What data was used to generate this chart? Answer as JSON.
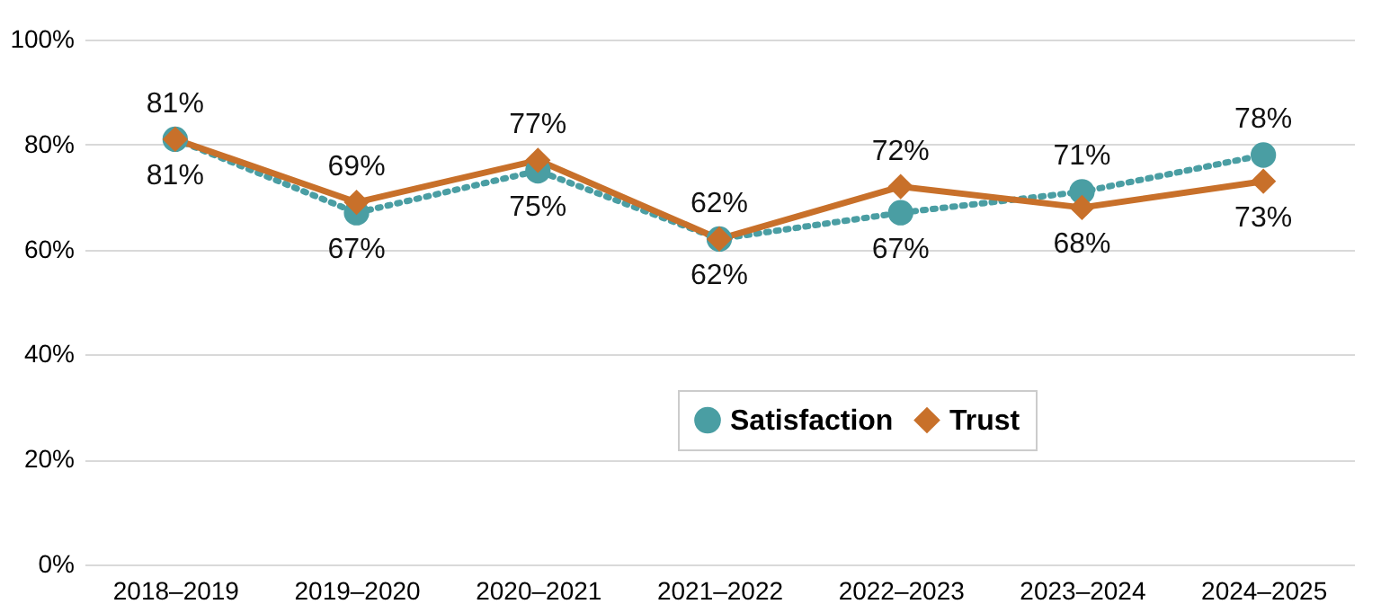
{
  "chart_data": {
    "type": "line",
    "categories": [
      "2018–2019",
      "2019–2020",
      "2020–2021",
      "2021–2022",
      "2022–2023",
      "2023–2024",
      "2024–2025"
    ],
    "series": [
      {
        "name": "Satisfaction",
        "color": "#4a9ea3",
        "marker": "circle",
        "line_style": "dotted",
        "values": [
          81,
          67,
          75,
          62,
          67,
          71,
          78
        ],
        "value_labels": [
          "81%",
          "67%",
          "75%",
          "62%",
          "67%",
          "71%",
          "78%"
        ]
      },
      {
        "name": "Trust",
        "color": "#c8702a",
        "marker": "diamond",
        "line_style": "solid",
        "values": [
          81,
          69,
          77,
          62,
          72,
          68,
          73
        ],
        "value_labels": [
          "81%",
          "69%",
          "77%",
          "62%",
          "72%",
          "68%",
          "73%"
        ]
      }
    ],
    "ylim": [
      0,
      100
    ],
    "yticks": [
      {
        "value": 0,
        "label": "0%"
      },
      {
        "value": 20,
        "label": "20%"
      },
      {
        "value": 40,
        "label": "40%"
      },
      {
        "value": 60,
        "label": "60%"
      },
      {
        "value": 80,
        "label": "80%"
      },
      {
        "value": 100,
        "label": "100%"
      }
    ],
    "grid": "y",
    "legend": "bottom right"
  }
}
